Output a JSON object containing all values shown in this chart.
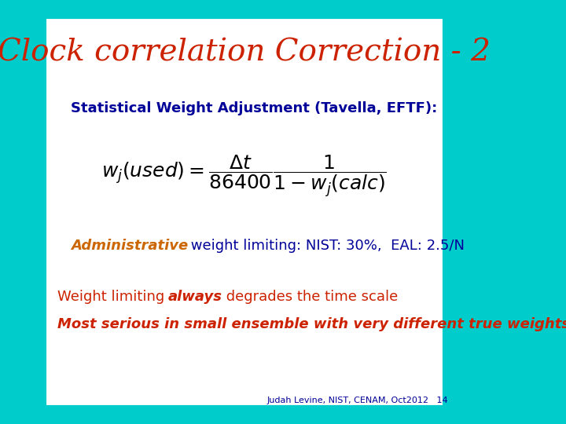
{
  "title": "Clock correlation Correction - 2",
  "title_color": "#CC2200",
  "bg_outer": "#00CCCC",
  "bg_inner": "#FFFFFF",
  "subtitle": "Statistical Weight Adjustment (Tavella, EFTF):",
  "subtitle_color": "#000099",
  "admin_italic": "Administrative",
  "admin_rest": " weight limiting: NIST: 30%,  EAL: 2.5/N",
  "admin_color_italic": "#CC6600",
  "admin_color_rest": "#000099",
  "line1a": "Weight limiting ",
  "line1b": "always",
  "line1c": " degrades the time scale",
  "line2": "Most serious in small ensemble with very different true weights",
  "bottom_text": "Judah Levine, NIST, CENAM, Oct2012   14",
  "red_color": "#CC2200",
  "blue_color": "#000099",
  "formula_color": "#000000"
}
